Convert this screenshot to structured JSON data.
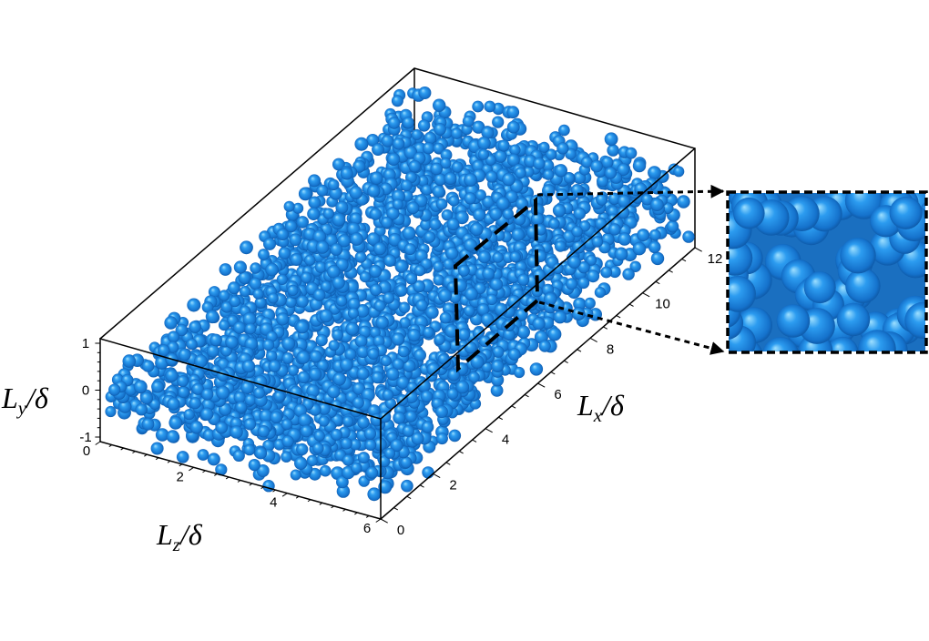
{
  "figure": {
    "y_axis": {
      "symbol": "L",
      "subscript": "y",
      "suffix": "/δ",
      "ticks": [
        "1",
        "0",
        "-1"
      ]
    },
    "z_axis": {
      "symbol": "L",
      "subscript": "z",
      "suffix": "/δ",
      "ticks": [
        "0",
        "2",
        "4",
        "6"
      ]
    },
    "x_axis": {
      "symbol": "L",
      "subscript": "x",
      "suffix": "/δ",
      "ticks": [
        "0",
        "2",
        "4",
        "6",
        "8",
        "10",
        "12"
      ]
    }
  }
}
